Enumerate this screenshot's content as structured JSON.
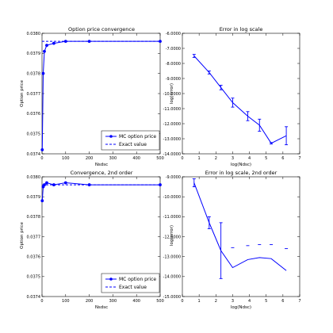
{
  "chart_data": [
    {
      "type": "line",
      "title": "Option price convergence",
      "xlabel": "Nsdsc",
      "ylabel": "Option price",
      "xlim": [
        0,
        500
      ],
      "ylim": [
        0.0374,
        0.038
      ],
      "xticks": [
        0,
        100,
        200,
        300,
        400,
        500
      ],
      "yticks": [
        0.0374,
        0.0375,
        0.0376,
        0.0377,
        0.0378,
        0.0379,
        0.038
      ],
      "grid": false,
      "legend_position": "bottom-right",
      "series": [
        {
          "name": "MC option price",
          "style": "line-markers",
          "x": [
            1,
            5,
            10,
            20,
            50,
            100,
            200,
            500
          ],
          "y": [
            0.03742,
            0.0378,
            0.03791,
            0.03794,
            0.03795,
            0.03796,
            0.03796,
            0.03796
          ]
        },
        {
          "name": "Exact value",
          "style": "dashed",
          "x": [
            0,
            500
          ],
          "y": [
            0.03796,
            0.03796
          ]
        }
      ]
    },
    {
      "type": "line",
      "title": "Error in log scale",
      "xlabel": "log(Ndsc)",
      "ylabel": "log(error)",
      "xlim": [
        0,
        7
      ],
      "ylim": [
        -14,
        -6
      ],
      "xticks": [
        0,
        1,
        2,
        3,
        4,
        5,
        6,
        7
      ],
      "yticks": [
        -14,
        -13,
        -12,
        -11,
        -10,
        -9,
        -8,
        -7,
        -6
      ],
      "grid": false,
      "series": [
        {
          "style": "line-errorbars",
          "x": [
            0.7,
            1.6,
            2.3,
            3.0,
            3.9,
            4.6,
            5.3,
            6.2
          ],
          "y": [
            -7.5,
            -8.6,
            -9.6,
            -10.6,
            -11.5,
            -12.1,
            -13.3,
            -12.8
          ],
          "err": [
            0.1,
            0.1,
            0.15,
            0.3,
            0.3,
            0.4,
            0.05,
            0.6
          ]
        }
      ]
    },
    {
      "type": "line",
      "title": "Convergence, 2nd order",
      "xlabel": "Nsdsc",
      "ylabel": "Option price",
      "xlim": [
        0,
        500
      ],
      "ylim": [
        0.0374,
        0.038
      ],
      "xticks": [
        0,
        100,
        200,
        300,
        400,
        500
      ],
      "yticks": [
        0.0374,
        0.0375,
        0.0376,
        0.0377,
        0.0378,
        0.0379,
        0.038
      ],
      "grid": false,
      "legend_position": "bottom-right",
      "series": [
        {
          "name": "MC option price",
          "style": "line-markers",
          "x": [
            1,
            5,
            10,
            20,
            50,
            100,
            200,
            500
          ],
          "y": [
            0.03788,
            0.03795,
            0.03796,
            0.03797,
            0.03796,
            0.03797,
            0.03796,
            0.03796
          ]
        },
        {
          "name": "Exact value",
          "style": "dashed",
          "x": [
            0,
            500
          ],
          "y": [
            0.03796,
            0.03796
          ]
        }
      ]
    },
    {
      "type": "line",
      "title": "Error in log scale, 2nd order",
      "xlabel": "log(Ndsc)",
      "ylabel": "log(error)",
      "xlim": [
        0,
        7
      ],
      "ylim": [
        -15,
        -9
      ],
      "xticks": [
        0,
        1,
        2,
        3,
        4,
        5,
        6,
        7
      ],
      "yticks": [
        -15,
        -14,
        -13,
        -12,
        -11,
        -10,
        -9
      ],
      "grid": false,
      "series": [
        {
          "style": "line-errorbars",
          "x": [
            0.7,
            1.6,
            2.3,
            3.0,
            3.9,
            4.6,
            5.3,
            6.2
          ],
          "y": [
            -9.3,
            -11.3,
            -12.7,
            -13.55,
            -13.15,
            -13.05,
            -13.1,
            -13.7
          ],
          "err": [
            0.2,
            0.3,
            1.4,
            0,
            0,
            0,
            0,
            0
          ]
        },
        {
          "style": "points",
          "x": [
            3.0,
            3.9,
            4.6,
            5.3,
            6.2
          ],
          "y": [
            -12.55,
            -12.45,
            -12.4,
            -12.4,
            -12.6
          ]
        }
      ]
    }
  ]
}
